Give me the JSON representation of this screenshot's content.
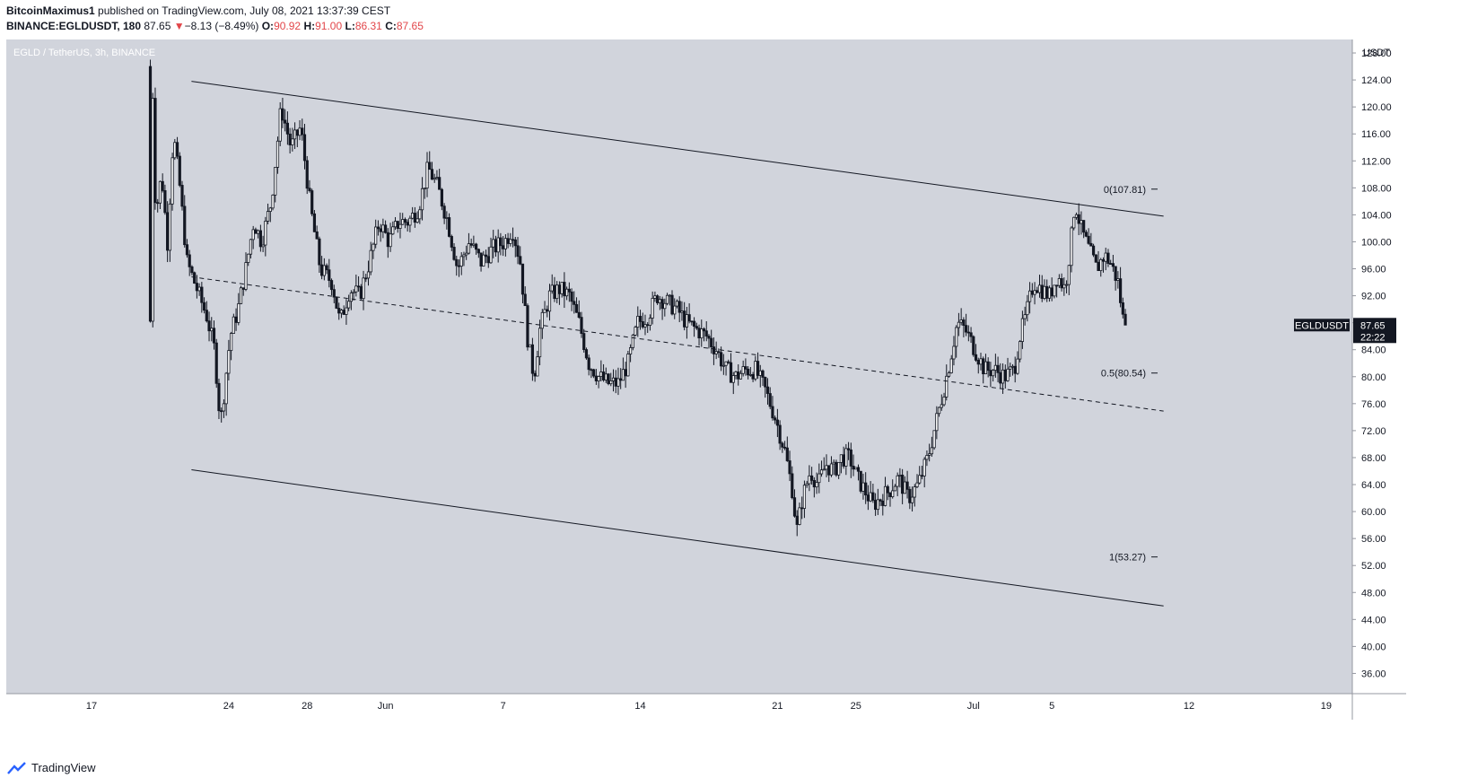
{
  "header": {
    "author": "BitcoinMaximus1",
    "published_text": "published on TradingView.com, July 08, 2021 13:37:39 CEST",
    "symbol": "BINANCE:EGLDUSDT, 180",
    "last": "87.65",
    "arrow": "▼",
    "change": "−8.13 (−8.49%)",
    "o_label": "O:",
    "o_val": "90.92",
    "h_label": "H:",
    "h_val": "91.00",
    "l_label": "L:",
    "l_val": "86.31",
    "c_label": "C:",
    "c_val": "87.65"
  },
  "footer": {
    "brand": "TradingView"
  },
  "chart_data": {
    "type": "candlestick",
    "title": "EGLD / TetherUS, 3h, BINANCE",
    "currency_label": "USDT",
    "ylim": [
      33,
      130
    ],
    "y_ticks": [
      36,
      40,
      44,
      48,
      52,
      56,
      60,
      64,
      68,
      72,
      76,
      80,
      84,
      88,
      92,
      96,
      100,
      104,
      108,
      112,
      116,
      120,
      124,
      128
    ],
    "y_tick_labels": [
      "36.00",
      "40.00",
      "44.00",
      "48.00",
      "52.00",
      "56.00",
      "60.00",
      "64.00",
      "68.00",
      "72.00",
      "76.00",
      "80.00",
      "84.00",
      "88.00",
      "92.00",
      "96.00",
      "100.00",
      "104.00",
      "108.00",
      "112.00",
      "116.00",
      "120.00",
      "124.00",
      "128.00"
    ],
    "xlim": [
      0,
      63
    ],
    "x_ticks": [
      {
        "t": 4,
        "label": "17"
      },
      {
        "t": 11,
        "label": "24"
      },
      {
        "t": 15,
        "label": "28"
      },
      {
        "t": 19,
        "label": "Jun"
      },
      {
        "t": 25,
        "label": "7"
      },
      {
        "t": 32,
        "label": "14"
      },
      {
        "t": 39,
        "label": "21"
      },
      {
        "t": 43,
        "label": "25"
      },
      {
        "t": 49,
        "label": "Jul"
      },
      {
        "t": 53,
        "label": "5"
      },
      {
        "t": 60,
        "label": "12"
      },
      {
        "t": 67,
        "label": "19"
      }
    ],
    "price_path": [
      [
        7.0,
        126
      ],
      [
        7.1,
        75
      ],
      [
        7.2,
        128
      ],
      [
        7.4,
        104
      ],
      [
        7.7,
        110
      ],
      [
        8.0,
        100
      ],
      [
        8.3,
        116
      ],
      [
        8.6,
        109
      ],
      [
        9.0,
        97
      ],
      [
        9.5,
        93
      ],
      [
        10.0,
        89
      ],
      [
        10.4,
        84
      ],
      [
        10.7,
        73
      ],
      [
        10.9,
        78
      ],
      [
        11.2,
        86
      ],
      [
        11.6,
        90
      ],
      [
        12.0,
        96
      ],
      [
        12.4,
        103
      ],
      [
        12.8,
        100
      ],
      [
        13.3,
        106
      ],
      [
        13.8,
        120
      ],
      [
        14.3,
        114
      ],
      [
        14.8,
        117
      ],
      [
        15.3,
        105
      ],
      [
        15.8,
        96
      ],
      [
        16.4,
        94
      ],
      [
        16.8,
        88
      ],
      [
        17.3,
        93
      ],
      [
        17.8,
        92
      ],
      [
        18.3,
        97
      ],
      [
        18.8,
        103
      ],
      [
        19.3,
        100
      ],
      [
        19.8,
        103
      ],
      [
        20.3,
        103
      ],
      [
        20.8,
        105
      ],
      [
        21.3,
        111
      ],
      [
        21.8,
        108
      ],
      [
        22.3,
        103
      ],
      [
        22.8,
        96
      ],
      [
        23.4,
        100
      ],
      [
        24.0,
        97
      ],
      [
        24.6,
        99
      ],
      [
        25.2,
        100
      ],
      [
        25.6,
        102
      ],
      [
        26.0,
        97
      ],
      [
        26.4,
        85
      ],
      [
        26.7,
        80
      ],
      [
        27.0,
        87
      ],
      [
        27.5,
        92
      ],
      [
        28.0,
        93
      ],
      [
        28.5,
        92
      ],
      [
        29.0,
        88
      ],
      [
        29.5,
        82
      ],
      [
        30.0,
        80
      ],
      [
        30.5,
        79
      ],
      [
        31.0,
        79
      ],
      [
        31.5,
        82
      ],
      [
        32.0,
        88
      ],
      [
        32.5,
        89
      ],
      [
        33.0,
        92
      ],
      [
        33.5,
        91
      ],
      [
        34.0,
        90
      ],
      [
        34.5,
        88
      ],
      [
        35.0,
        87
      ],
      [
        35.5,
        86
      ],
      [
        36.0,
        84
      ],
      [
        36.5,
        81
      ],
      [
        37.0,
        80
      ],
      [
        37.5,
        81
      ],
      [
        38.0,
        81
      ],
      [
        38.5,
        78
      ],
      [
        39.0,
        74
      ],
      [
        39.5,
        69
      ],
      [
        39.9,
        63
      ],
      [
        40.1,
        57
      ],
      [
        40.4,
        62
      ],
      [
        40.8,
        66
      ],
      [
        41.2,
        64
      ],
      [
        41.6,
        67
      ],
      [
        42.0,
        66
      ],
      [
        42.4,
        68
      ],
      [
        42.8,
        68
      ],
      [
        43.2,
        65
      ],
      [
        43.6,
        63
      ],
      [
        44.0,
        61
      ],
      [
        44.4,
        62
      ],
      [
        44.8,
        63
      ],
      [
        45.3,
        65
      ],
      [
        45.8,
        62
      ],
      [
        46.3,
        64
      ],
      [
        46.8,
        68
      ],
      [
        47.2,
        73
      ],
      [
        47.6,
        78
      ],
      [
        47.9,
        82
      ],
      [
        48.3,
        88
      ],
      [
        48.7,
        87
      ],
      [
        49.2,
        84
      ],
      [
        49.7,
        81
      ],
      [
        50.2,
        81
      ],
      [
        50.7,
        80
      ],
      [
        51.2,
        81
      ],
      [
        51.5,
        86
      ],
      [
        51.8,
        89
      ],
      [
        52.2,
        94
      ],
      [
        52.6,
        93
      ],
      [
        53.0,
        92
      ],
      [
        53.4,
        95
      ],
      [
        53.8,
        93
      ],
      [
        54.1,
        100
      ],
      [
        54.3,
        106
      ],
      [
        54.6,
        102
      ],
      [
        55.0,
        99
      ],
      [
        55.4,
        96
      ],
      [
        55.8,
        98
      ],
      [
        56.1,
        97
      ],
      [
        56.5,
        94
      ],
      [
        56.8,
        87.65
      ]
    ],
    "lines": [
      {
        "name": "channel-upper",
        "style": "solid",
        "start": [
          9.1,
          123.8
        ],
        "end": [
          58.7,
          103.8
        ]
      },
      {
        "name": "channel-mid",
        "style": "dashed",
        "start": [
          9.1,
          94.8
        ],
        "end": [
          58.7,
          74.9
        ]
      },
      {
        "name": "channel-lower",
        "style": "solid",
        "start": [
          9.1,
          66.2
        ],
        "end": [
          58.7,
          46.0
        ]
      }
    ],
    "fib_labels": [
      {
        "label": "0(107.81)",
        "level": 107.81
      },
      {
        "label": "0.5(80.54)",
        "level": 80.54
      },
      {
        "label": "1(53.27)",
        "level": 53.27
      }
    ],
    "last_price_label": {
      "symbol": "EGLDUSDT",
      "price": "87.65",
      "countdown": "22:22",
      "value": 87.65
    }
  },
  "colors": {
    "plot_bg": "#d1d4dc",
    "candle": "#131722",
    "axis_text": "#131722",
    "down": "#e2464a"
  }
}
